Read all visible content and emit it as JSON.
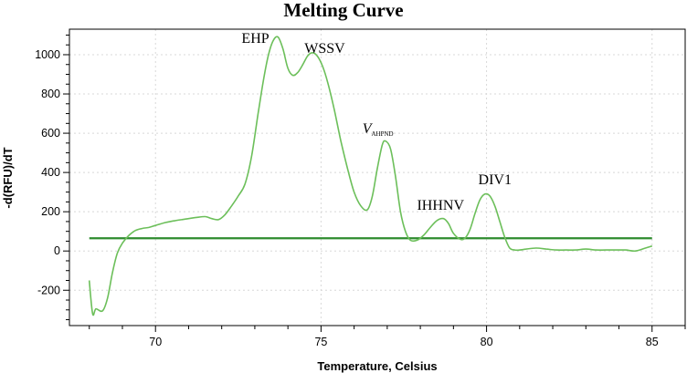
{
  "chart_data": {
    "type": "line",
    "title": "Melting Curve",
    "xlabel": "Temperature, Celsius",
    "ylabel": "-d(RFU)/dT",
    "xlim": [
      67.4,
      86.0
    ],
    "ylim": [
      -380,
      1130
    ],
    "xticks": [
      70,
      75,
      80,
      85
    ],
    "yticks": [
      -200,
      0,
      200,
      400,
      600,
      800,
      1000
    ],
    "grid": true,
    "threshold": {
      "y": 65,
      "x_range": [
        68.0,
        85.0
      ],
      "color": "#2e8b2e"
    },
    "series": [
      {
        "color": "#6cbf5a",
        "x": [
          68.0,
          68.1,
          68.2,
          68.4,
          68.55,
          68.7,
          68.85,
          69.0,
          69.2,
          69.4,
          69.6,
          69.8,
          70.0,
          70.3,
          70.6,
          70.8,
          71.0,
          71.2,
          71.5,
          71.7,
          71.9,
          72.1,
          72.3,
          72.5,
          72.7,
          72.9,
          73.1,
          73.25,
          73.4,
          73.55,
          73.7,
          73.85,
          74.0,
          74.15,
          74.3,
          74.45,
          74.6,
          74.75,
          74.9,
          75.05,
          75.2,
          75.4,
          75.6,
          75.8,
          76.0,
          76.2,
          76.4,
          76.55,
          76.7,
          76.85,
          76.95,
          77.1,
          77.25,
          77.4,
          77.55,
          77.7,
          77.9,
          78.1,
          78.3,
          78.5,
          78.7,
          78.85,
          79.0,
          79.2,
          79.35,
          79.5,
          79.65,
          79.8,
          79.95,
          80.1,
          80.25,
          80.4,
          80.55,
          80.7,
          80.85,
          81.0,
          81.2,
          81.5,
          81.8,
          82.1,
          82.4,
          82.7,
          83.0,
          83.3,
          83.6,
          83.9,
          84.2,
          84.5,
          84.8,
          85.0
        ],
        "values": [
          -150,
          -320,
          -295,
          -305,
          -240,
          -110,
          -10,
          40,
          80,
          105,
          115,
          120,
          130,
          145,
          155,
          160,
          165,
          170,
          175,
          165,
          160,
          185,
          230,
          280,
          340,
          480,
          700,
          860,
          990,
          1070,
          1090,
          1030,
          930,
          895,
          910,
          950,
          995,
          1010,
          990,
          940,
          860,
          720,
          560,
          420,
          300,
          230,
          210,
          280,
          420,
          540,
          560,
          520,
          380,
          200,
          100,
          55,
          55,
          80,
          120,
          155,
          165,
          140,
          90,
          60,
          65,
          110,
          190,
          260,
          290,
          280,
          230,
          150,
          70,
          15,
          5,
          5,
          10,
          15,
          10,
          5,
          5,
          5,
          10,
          5,
          5,
          5,
          5,
          0,
          15,
          25
        ]
      }
    ],
    "annotations": [
      {
        "text": "EHP",
        "x": 72.6,
        "y": 1060
      },
      {
        "text": "WSSV",
        "x": 74.5,
        "y": 1010
      },
      {
        "text": "V",
        "sub": "AHPND",
        "x": 76.25,
        "y": 600
      },
      {
        "text": "IHHNV",
        "x": 77.9,
        "y": 210
      },
      {
        "text": "DIV1",
        "x": 79.75,
        "y": 340
      }
    ]
  }
}
